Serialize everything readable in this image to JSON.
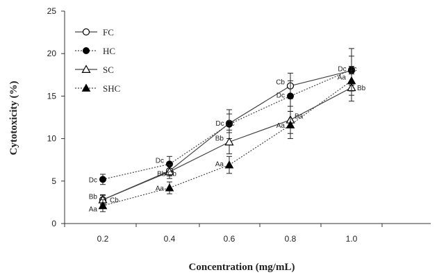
{
  "chart_data": {
    "type": "line",
    "xlabel": "Concentration (mg/mL)",
    "ylabel": "Cytotoxicity (%)",
    "x_categories": [
      "0.2",
      "0.4",
      "0.6",
      "0.8",
      "1.0"
    ],
    "ylim": [
      0,
      25
    ],
    "y_ticks": [
      0,
      5,
      10,
      15,
      20,
      25
    ],
    "grid": false,
    "legend_position": "top-left",
    "series": [
      {
        "name": "FC",
        "marker": "circle-open",
        "dash": "solid",
        "values": [
          2.8,
          6.2,
          11.8,
          16.2,
          18.0
        ],
        "errors": [
          0.5,
          0.6,
          1.1,
          1.5,
          1.7
        ],
        "labels": [
          "Cb",
          "",
          "",
          "Cb",
          ""
        ]
      },
      {
        "name": "HC",
        "marker": "circle-filled",
        "dash": "dotted",
        "values": [
          5.2,
          7.0,
          11.7,
          15.0,
          18.1
        ],
        "errors": [
          0.6,
          0.9,
          1.7,
          1.8,
          2.5
        ],
        "labels": [
          "Dc",
          "Dc",
          "Dc Cc",
          "Dc",
          "Dc Cc"
        ]
      },
      {
        "name": "SC",
        "marker": "triangle-open",
        "dash": "solid",
        "values": [
          2.8,
          6.1,
          9.6,
          12.2,
          16.0
        ],
        "errors": [
          0.6,
          0.8,
          1.4,
          1.6,
          1.6
        ],
        "labels": [
          "Bb",
          "Bb Cb",
          "Bb",
          "Ba",
          "Bb"
        ]
      },
      {
        "name": "SHC",
        "marker": "triangle-filled",
        "dash": "dotted",
        "values": [
          2.1,
          4.2,
          6.9,
          11.6,
          16.8
        ],
        "errors": [
          0.7,
          0.7,
          1.0,
          1.6,
          1.7
        ],
        "labels": [
          "Aa",
          "Aa",
          "Aa",
          "Aa",
          "Aa"
        ]
      }
    ]
  }
}
